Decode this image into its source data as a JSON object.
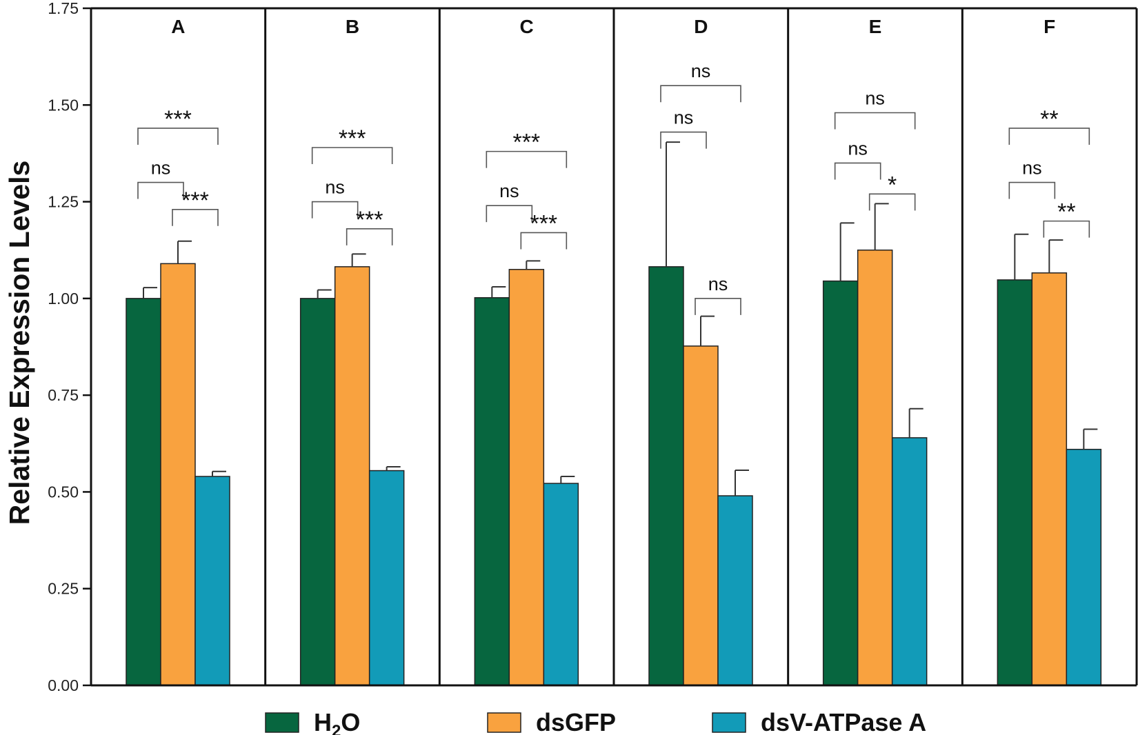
{
  "chart_data": {
    "type": "bar",
    "ylabel": "Relative Expression Levels",
    "ylim": [
      0,
      1.75
    ],
    "yticks": [
      0.0,
      0.25,
      0.5,
      0.75,
      1.0,
      1.25,
      1.5,
      1.75
    ],
    "ytick_labels": [
      "0.00",
      "0.25",
      "0.50",
      "0.75",
      "1.00",
      "1.25",
      "1.50",
      "1.75"
    ],
    "grid": false,
    "series": [
      {
        "name": "H2O",
        "legend_main": "H",
        "legend_sub": "2",
        "legend_tail": "O",
        "color": "#07663f"
      },
      {
        "name": "dsGFP",
        "legend_main": "dsGFP",
        "legend_sub": "",
        "legend_tail": "",
        "color": "#f9a23f"
      },
      {
        "name": "dsV-ATPase A",
        "legend_main": "dsV-ATPase A",
        "legend_sub": "",
        "legend_tail": "",
        "color": "#129bb8"
      }
    ],
    "panels": [
      {
        "label": "A",
        "values": [
          1.0,
          1.09,
          0.54
        ],
        "errors": [
          0.028,
          0.058,
          0.013
        ],
        "brackets": [
          {
            "from": 0,
            "to": 1,
            "y": 1.3,
            "label": "ns"
          },
          {
            "from": 1,
            "to": 2,
            "y": 1.23,
            "label": "***"
          },
          {
            "from": 0,
            "to": 2,
            "y": 1.44,
            "label": "***"
          }
        ]
      },
      {
        "label": "B",
        "values": [
          1.0,
          1.082,
          0.555
        ],
        "errors": [
          0.022,
          0.033,
          0.01
        ],
        "brackets": [
          {
            "from": 0,
            "to": 1,
            "y": 1.25,
            "label": "ns"
          },
          {
            "from": 1,
            "to": 2,
            "y": 1.18,
            "label": "***"
          },
          {
            "from": 0,
            "to": 2,
            "y": 1.39,
            "label": "***"
          }
        ]
      },
      {
        "label": "C",
        "values": [
          1.002,
          1.075,
          0.522
        ],
        "errors": [
          0.028,
          0.022,
          0.018
        ],
        "brackets": [
          {
            "from": 0,
            "to": 1,
            "y": 1.24,
            "label": "ns"
          },
          {
            "from": 1,
            "to": 2,
            "y": 1.17,
            "label": "***"
          },
          {
            "from": 0,
            "to": 2,
            "y": 1.38,
            "label": "***"
          }
        ]
      },
      {
        "label": "D",
        "values": [
          1.082,
          0.877,
          0.49
        ],
        "errors": [
          0.322,
          0.077,
          0.066
        ],
        "brackets": [
          {
            "from": 0,
            "to": 1,
            "y": 1.43,
            "label": "ns"
          },
          {
            "from": 1,
            "to": 2,
            "y": 1.0,
            "label": "ns"
          },
          {
            "from": 0,
            "to": 2,
            "y": 1.55,
            "label": "ns"
          }
        ]
      },
      {
        "label": "E",
        "values": [
          1.045,
          1.125,
          0.64
        ],
        "errors": [
          0.15,
          0.12,
          0.075
        ],
        "brackets": [
          {
            "from": 0,
            "to": 1,
            "y": 1.35,
            "label": "ns"
          },
          {
            "from": 1,
            "to": 2,
            "y": 1.27,
            "label": "*"
          },
          {
            "from": 0,
            "to": 2,
            "y": 1.48,
            "label": "ns"
          }
        ]
      },
      {
        "label": "F",
        "values": [
          1.048,
          1.066,
          0.61
        ],
        "errors": [
          0.118,
          0.085,
          0.052
        ],
        "brackets": [
          {
            "from": 0,
            "to": 1,
            "y": 1.3,
            "label": "ns"
          },
          {
            "from": 1,
            "to": 2,
            "y": 1.2,
            "label": "**"
          },
          {
            "from": 0,
            "to": 2,
            "y": 1.44,
            "label": "**"
          }
        ]
      }
    ]
  }
}
